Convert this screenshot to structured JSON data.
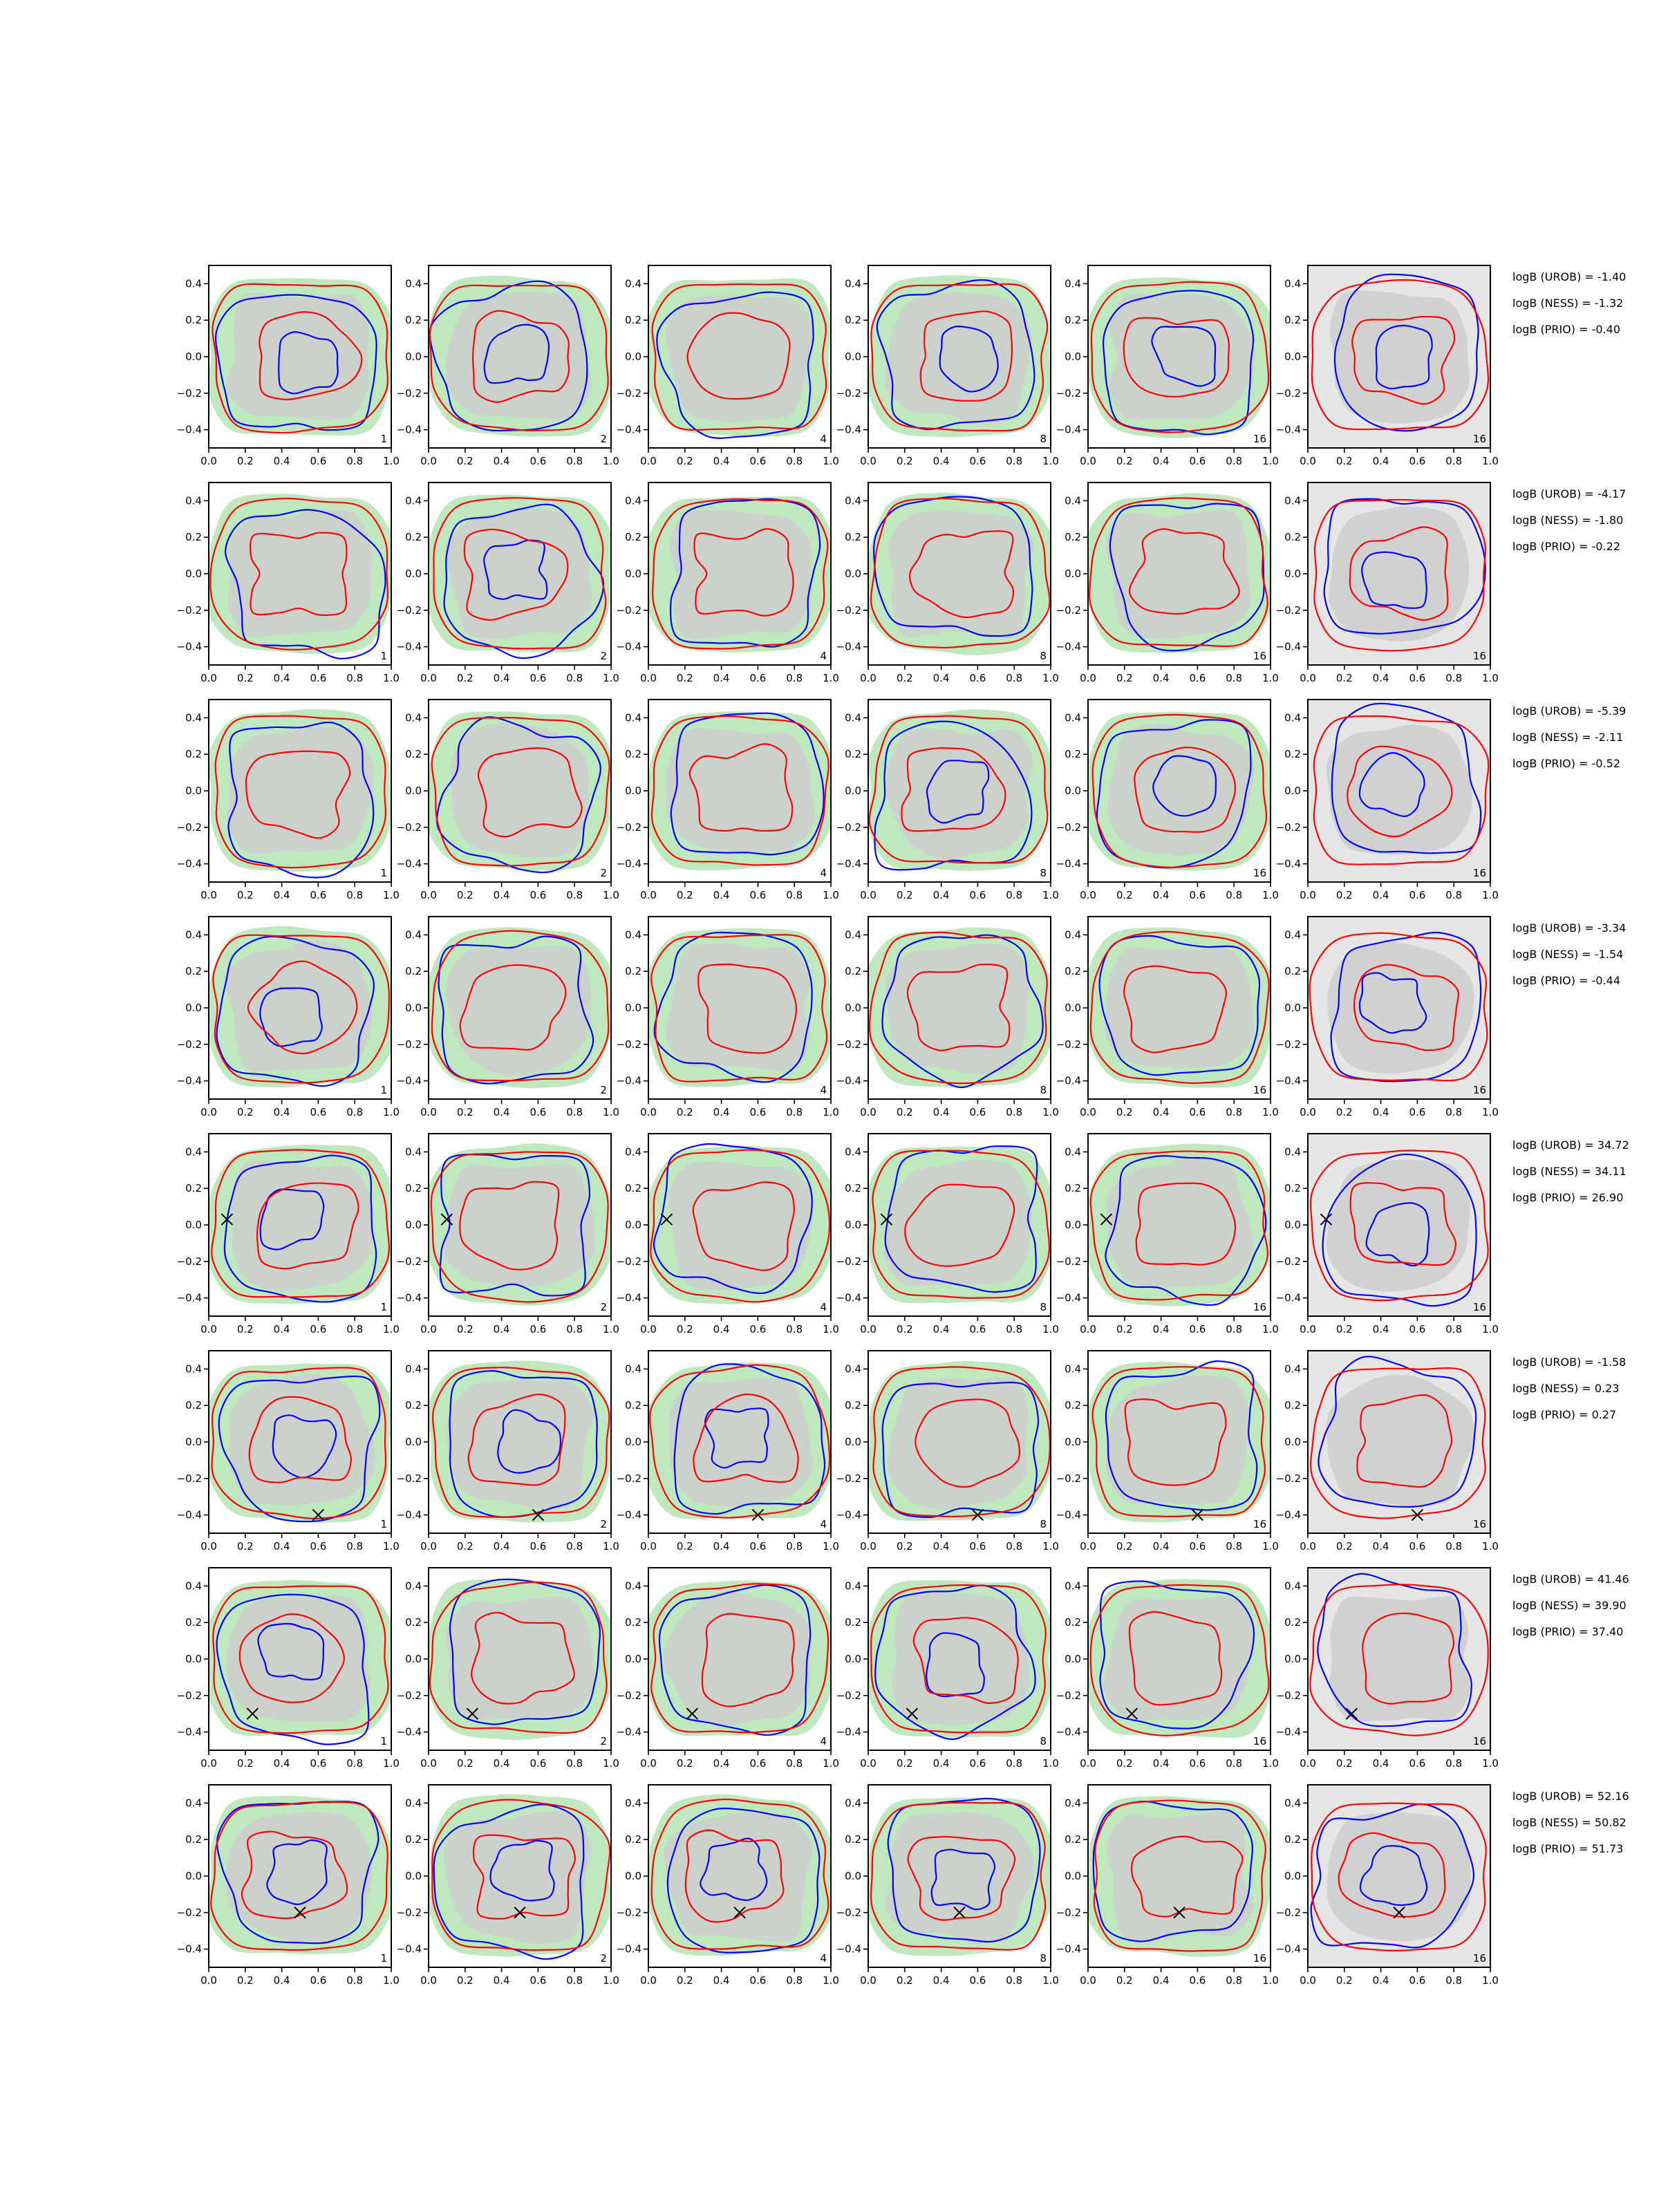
{
  "figure": {
    "columns": [
      1,
      2,
      4,
      8,
      16,
      16
    ],
    "colors": {
      "blue_contour": "#0000ff",
      "red_contour": "#ff0000",
      "green_fill": "#bfe8bf",
      "gray_fill": "#cccccc",
      "light_gray_fill": "#e6e6e6",
      "marker": "#000000"
    }
  },
  "chart_data": {
    "type": "contour-grid",
    "xlim": [
      0.0,
      1.0
    ],
    "ylim": [
      -0.5,
      0.5
    ],
    "xticks": [
      "0.0",
      "0.2",
      "0.4",
      "0.6",
      "0.8",
      "1.0"
    ],
    "yticks": [
      "0.4",
      "0.2",
      "0.0",
      "−0.2",
      "−0.4"
    ],
    "rows": [
      {
        "marker": null,
        "logB": [
          "logB (UROB) = -1.40",
          "logB (NESS) = -1.32",
          "logB (PRIO) = -0.40"
        ]
      },
      {
        "marker": null,
        "logB": [
          "logB (UROB) = -4.17",
          "logB (NESS) = -1.80",
          "logB (PRIO) = -0.22"
        ]
      },
      {
        "marker": null,
        "logB": [
          "logB (UROB) = -5.39",
          "logB (NESS) = -2.11",
          "logB (PRIO) = -0.52"
        ]
      },
      {
        "marker": null,
        "logB": [
          "logB (UROB) = -3.34",
          "logB (NESS) = -1.54",
          "logB (PRIO) = -0.44"
        ]
      },
      {
        "marker": [
          0.1,
          0.03
        ],
        "logB": [
          "logB (UROB) = 34.72",
          "logB (NESS) = 34.11",
          "logB (PRIO) = 26.90"
        ]
      },
      {
        "marker": [
          0.6,
          -0.4
        ],
        "logB": [
          "logB (UROB) = -1.58",
          "logB (NESS) = 0.23",
          "logB (PRIO) = 0.27"
        ]
      },
      {
        "marker": [
          0.24,
          -0.3
        ],
        "logB": [
          "logB (UROB) = 41.46",
          "logB (NESS) = 39.90",
          "logB (PRIO) = 37.40"
        ]
      },
      {
        "marker": [
          0.5,
          -0.2
        ],
        "logB": [
          "logB (UROB) = 52.16",
          "logB (NESS) = 50.82",
          "logB (PRIO) = 51.73"
        ]
      }
    ]
  }
}
